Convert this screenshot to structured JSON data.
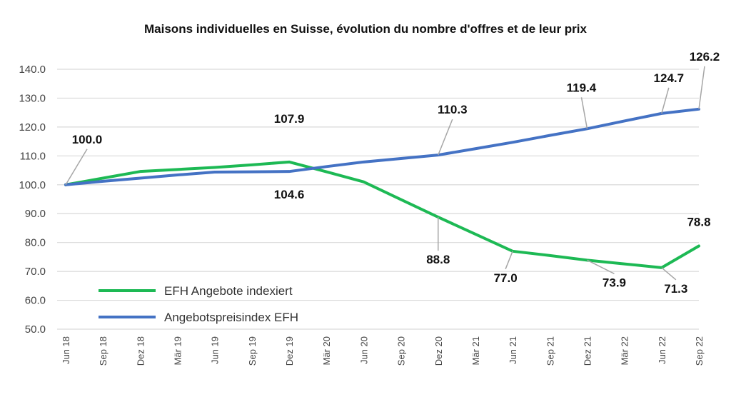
{
  "chart_data": {
    "type": "line",
    "title": "Maisons individuelles en Suisse, évolution du nombre d'offres et de leur prix",
    "xlabel": "",
    "ylabel": "",
    "ylim": [
      50,
      140
    ],
    "yticks": [
      "50.0",
      "60.0",
      "70.0",
      "80.0",
      "90.0",
      "100.0",
      "110.0",
      "120.0",
      "130.0",
      "140.0"
    ],
    "categories": [
      "Jun 18",
      "Sep 18",
      "Dez 18",
      "Mär 19",
      "Jun 19",
      "Sep 19",
      "Dez 19",
      "Mär 20",
      "Jun 20",
      "Sep 20",
      "Dez 20",
      "Mär 21",
      "Jun 21",
      "Sep 21",
      "Dez 21",
      "Mär 22",
      "Jun 22",
      "Sep 22"
    ],
    "grid": true,
    "legend_position": "bottom-left",
    "series": [
      {
        "name": "EFH Angebote indexiert",
        "color": "#1db954",
        "values": [
          100.0,
          102.3,
          104.6,
          105.3,
          106.0,
          106.9,
          107.9,
          104.5,
          101.0,
          94.9,
          88.8,
          82.9,
          77.0,
          75.5,
          73.9,
          72.6,
          71.3,
          78.8
        ],
        "labels": [
          {
            "index": 6,
            "text": "107.9"
          },
          {
            "index": 10,
            "text": "88.8"
          },
          {
            "index": 12,
            "text": "77.0"
          },
          {
            "index": 14,
            "text": "73.9"
          },
          {
            "index": 16,
            "text": "71.3"
          },
          {
            "index": 17,
            "text": "78.8"
          }
        ]
      },
      {
        "name": "Angebotspreisindex EFH",
        "color": "#4472c4",
        "values": [
          100.0,
          101.2,
          102.3,
          103.4,
          104.4,
          104.5,
          104.6,
          106.3,
          107.9,
          109.1,
          110.3,
          112.5,
          114.7,
          117.1,
          119.4,
          122.1,
          124.7,
          126.2
        ],
        "labels": [
          {
            "index": 0,
            "text": "100.0"
          },
          {
            "index": 6,
            "text": "104.6"
          },
          {
            "index": 10,
            "text": "110.3"
          },
          {
            "index": 14,
            "text": "119.4"
          },
          {
            "index": 16,
            "text": "124.7"
          },
          {
            "index": 17,
            "text": "126.2"
          }
        ]
      }
    ]
  }
}
